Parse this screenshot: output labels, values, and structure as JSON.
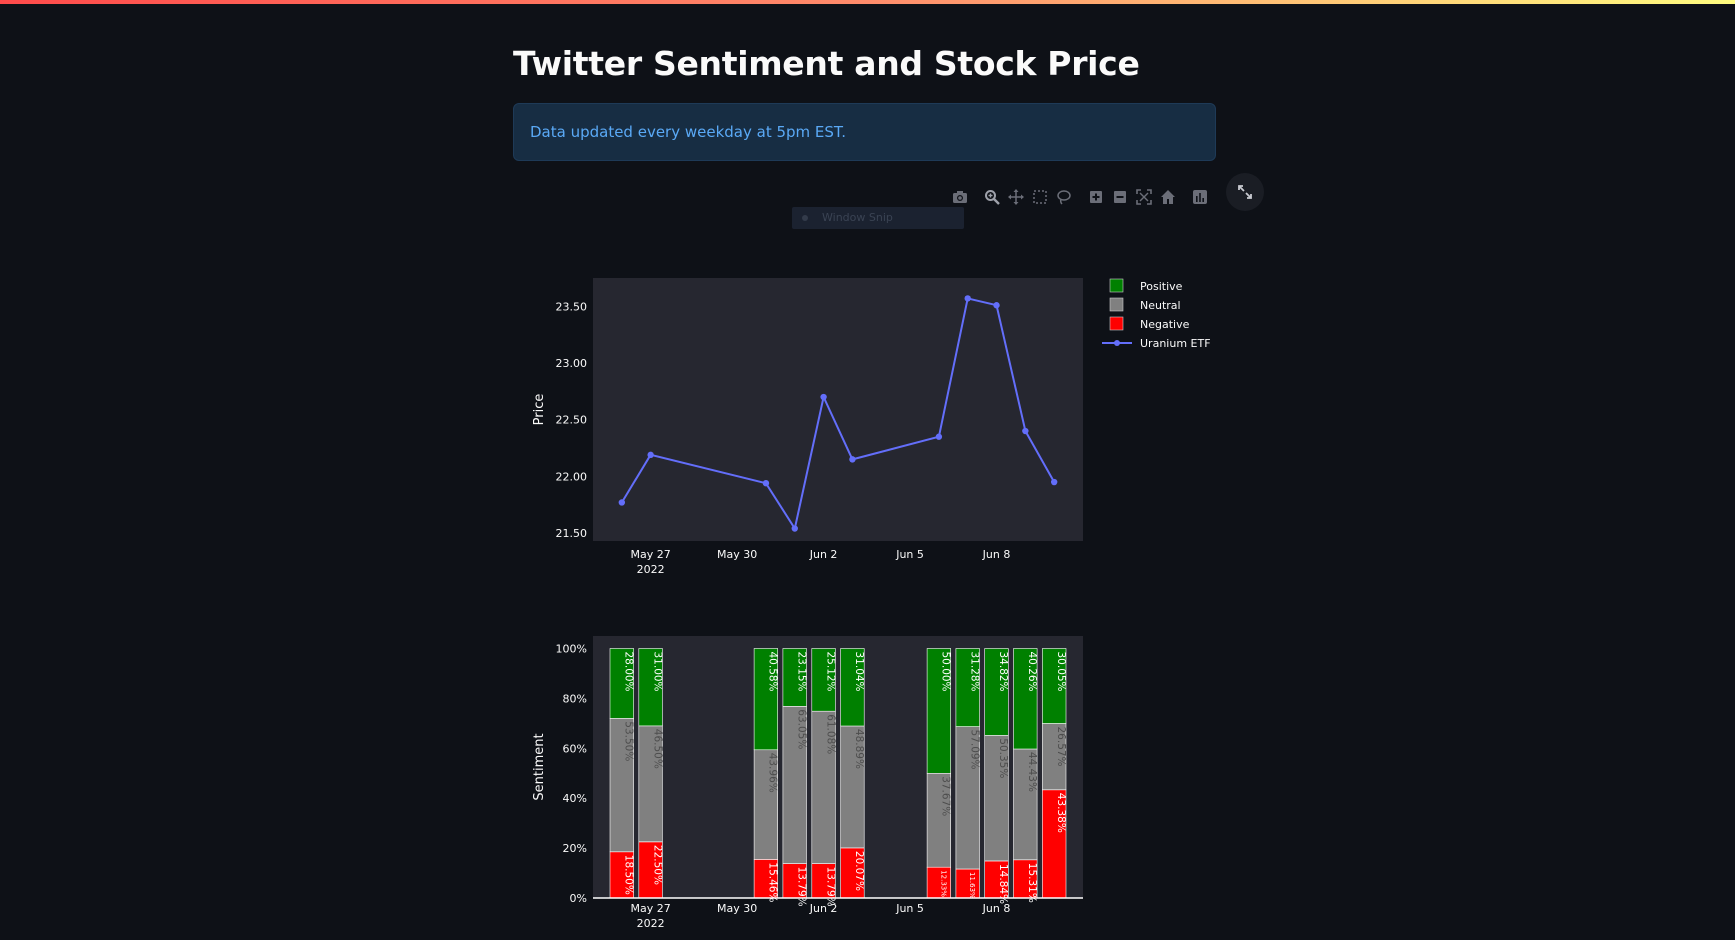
{
  "page": {
    "title": "Twitter Sentiment and Stock Price",
    "info": "Data updated every weekday at 5pm EST.",
    "tooltip": "Window Snip"
  },
  "modebar": {
    "icons": [
      "camera-icon",
      "zoom-icon",
      "pan-icon",
      "box-select-icon",
      "lasso-select-icon",
      "zoom-in-icon",
      "zoom-out-icon",
      "autoscale-icon",
      "reset-axes-icon",
      "plotly-logo-icon"
    ]
  },
  "colors": {
    "background": "#0e1117",
    "plot_bg": "#262730",
    "positive": "#008000",
    "neutral": "#808080",
    "negative": "#ff0000",
    "line": "#636efa",
    "info_bg": "#172d43",
    "info_text": "#5aa9f6"
  },
  "chart_data": [
    {
      "type": "line",
      "ylabel": "Price",
      "x": [
        "2022-05-26",
        "2022-05-27",
        "2022-05-31",
        "2022-06-01",
        "2022-06-02",
        "2022-06-03",
        "2022-06-06",
        "2022-06-07",
        "2022-06-08",
        "2022-06-09",
        "2022-06-10"
      ],
      "series": [
        {
          "name": "Uranium ETF",
          "values": [
            21.77,
            22.19,
            21.94,
            21.54,
            22.7,
            22.15,
            22.35,
            23.57,
            23.51,
            22.4,
            21.95
          ]
        }
      ],
      "x_ticks": [
        {
          "date": "2022-05-27",
          "label": "May 27",
          "sublabel": "2022"
        },
        {
          "date": "2022-05-30",
          "label": "May 30",
          "sublabel": ""
        },
        {
          "date": "2022-06-02",
          "label": "Jun 2",
          "sublabel": ""
        },
        {
          "date": "2022-06-05",
          "label": "Jun 5",
          "sublabel": ""
        },
        {
          "date": "2022-06-08",
          "label": "Jun 8",
          "sublabel": ""
        }
      ],
      "xlim": [
        "2022-05-25",
        "2022-06-11"
      ],
      "y_ticks": [
        "21.50",
        "22.00",
        "22.50",
        "23.00",
        "23.50"
      ],
      "ylim": [
        21.43,
        23.75
      ],
      "legend": {
        "placement": "top-right",
        "items": [
          {
            "label": "Positive",
            "color": "#008000",
            "kind": "box"
          },
          {
            "label": "Neutral",
            "color": "#808080",
            "kind": "box"
          },
          {
            "label": "Negative",
            "color": "#ff0000",
            "kind": "box"
          },
          {
            "label": "Uranium ETF",
            "color": "#636efa",
            "kind": "line"
          }
        ]
      }
    },
    {
      "type": "bar",
      "stacked": true,
      "ylabel": "Sentiment",
      "x": [
        "2022-05-26",
        "2022-05-27",
        "2022-05-31",
        "2022-06-01",
        "2022-06-02",
        "2022-06-03",
        "2022-06-06",
        "2022-06-07",
        "2022-06-08",
        "2022-06-09",
        "2022-06-10"
      ],
      "series": [
        {
          "name": "Negative",
          "values": [
            18.5,
            22.5,
            15.46,
            13.79,
            13.79,
            20.07,
            12.33,
            11.63,
            14.84,
            15.31,
            43.38
          ],
          "labels": [
            "18.50%",
            "22.50%",
            "15.46%",
            "13.79%",
            "13.79%",
            "20.07%",
            "12.33%",
            "11.63%",
            "14.84%",
            "15.31%",
            "43.38%"
          ]
        },
        {
          "name": "Neutral",
          "values": [
            53.5,
            46.5,
            43.96,
            63.05,
            61.08,
            48.89,
            37.67,
            57.09,
            50.35,
            44.43,
            26.57
          ],
          "labels": [
            "53.50%",
            "46.50%",
            "43.96%",
            "63.05%",
            "61.08%",
            "48.89%",
            "37.67%",
            "57.09%",
            "50.35%",
            "44.43%",
            "26.57%"
          ]
        },
        {
          "name": "Positive",
          "values": [
            28.0,
            31.0,
            40.58,
            23.15,
            25.12,
            31.04,
            50.0,
            31.28,
            34.82,
            40.26,
            30.05
          ],
          "labels": [
            "28.00%",
            "31.00%",
            "40.58%",
            "23.15%",
            "25.12%",
            "31.04%",
            "50.00%",
            "31.28%",
            "34.82%",
            "40.26%",
            "30.05%"
          ]
        }
      ],
      "x_ticks": [
        {
          "date": "2022-05-27",
          "label": "May 27",
          "sublabel": "2022"
        },
        {
          "date": "2022-05-30",
          "label": "May 30",
          "sublabel": ""
        },
        {
          "date": "2022-06-02",
          "label": "Jun 2",
          "sublabel": ""
        },
        {
          "date": "2022-06-05",
          "label": "Jun 5",
          "sublabel": ""
        },
        {
          "date": "2022-06-08",
          "label": "Jun 8",
          "sublabel": ""
        }
      ],
      "xlim": [
        "2022-05-25",
        "2022-06-11"
      ],
      "y_ticks": [
        "0%",
        "20%",
        "40%",
        "60%",
        "80%",
        "100%"
      ],
      "ylim": [
        0,
        105
      ]
    }
  ]
}
